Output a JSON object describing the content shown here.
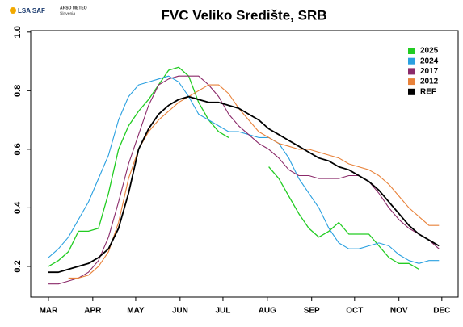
{
  "chart_data": {
    "type": "line",
    "title": "FVC Veliko Središte, SRB",
    "logo": {
      "name": "LSA SAF",
      "partner": "ARSO METEO",
      "partner_sub": "Slovenia"
    },
    "x": [
      0,
      7,
      14,
      21,
      28,
      35,
      42,
      49,
      56,
      63,
      70,
      77,
      84,
      91,
      98,
      105,
      112,
      119,
      126,
      133,
      140,
      147,
      154,
      161,
      168,
      175,
      182,
      189,
      196,
      203,
      210,
      217,
      224,
      231,
      238,
      245,
      252,
      259,
      266,
      273,
      280
    ],
    "xlim": [
      -12.4,
      286.4
    ],
    "xticks": [
      {
        "value": 0,
        "label": "MAR"
      },
      {
        "value": 31,
        "label": "APR"
      },
      {
        "value": 61,
        "label": "MAY"
      },
      {
        "value": 92,
        "label": "JUN"
      },
      {
        "value": 122,
        "label": "JUL"
      },
      {
        "value": 153,
        "label": "AUG"
      },
      {
        "value": 184,
        "label": "SEP"
      },
      {
        "value": 214,
        "label": "OCT"
      },
      {
        "value": 245,
        "label": "NOV"
      },
      {
        "value": 275,
        "label": "DEC"
      }
    ],
    "ylim": [
      0.095,
      1.005
    ],
    "yticks": [
      0.2,
      0.4,
      0.6,
      0.8,
      {
        "value": 1,
        "label": "1.0"
      }
    ],
    "grid": false,
    "legend": "top-right",
    "series": [
      {
        "name": "2025",
        "color": "#22cc22",
        "width": 1.3,
        "values": [
          0.2,
          0.22,
          0.25,
          0.32,
          0.32,
          0.33,
          0.45,
          0.6,
          0.68,
          0.73,
          0.77,
          0.82,
          0.87,
          0.88,
          0.85,
          0.76,
          0.7,
          0.66,
          0.64,
          null,
          null,
          null,
          0.54,
          0.5,
          0.44,
          0.38,
          0.33,
          0.3,
          0.32,
          0.35,
          0.31,
          0.31,
          0.31,
          0.27,
          0.23,
          0.21,
          0.21,
          0.19,
          null,
          null,
          null
        ]
      },
      {
        "name": "2024",
        "color": "#2aa0e0",
        "width": 1.1,
        "values": [
          0.23,
          0.26,
          0.3,
          0.36,
          0.42,
          0.5,
          0.58,
          0.7,
          0.78,
          0.82,
          0.83,
          0.84,
          0.85,
          0.83,
          0.78,
          0.72,
          0.7,
          0.68,
          0.66,
          0.66,
          0.65,
          0.64,
          0.64,
          0.62,
          0.57,
          0.5,
          0.45,
          0.4,
          0.33,
          0.28,
          0.26,
          0.26,
          0.27,
          0.28,
          0.27,
          0.24,
          0.22,
          0.21,
          0.22,
          0.22,
          null
        ]
      },
      {
        "name": "2017",
        "color": "#8b2a6a",
        "width": 1.1,
        "values": [
          0.14,
          0.14,
          0.15,
          0.16,
          0.18,
          0.22,
          0.3,
          0.42,
          0.55,
          0.65,
          0.75,
          0.82,
          0.84,
          0.85,
          0.85,
          0.85,
          0.82,
          0.78,
          0.72,
          0.68,
          0.65,
          0.62,
          0.6,
          0.57,
          0.53,
          0.51,
          0.51,
          0.5,
          0.5,
          0.5,
          0.51,
          0.51,
          0.49,
          0.45,
          0.4,
          0.36,
          0.33,
          0.31,
          0.29,
          0.26,
          null
        ]
      },
      {
        "name": "2012",
        "color": "#e8823a",
        "width": 1.1,
        "values": [
          null,
          null,
          0.16,
          0.16,
          0.17,
          0.2,
          0.25,
          0.35,
          0.5,
          0.6,
          0.66,
          0.7,
          0.73,
          0.76,
          0.78,
          0.8,
          0.82,
          0.82,
          0.79,
          0.74,
          0.7,
          0.66,
          0.64,
          0.62,
          0.61,
          0.6,
          0.6,
          0.59,
          0.58,
          0.57,
          0.55,
          0.54,
          0.53,
          0.51,
          0.48,
          0.44,
          0.4,
          0.37,
          0.34,
          0.34,
          null
        ]
      },
      {
        "name": "REF",
        "color": "#000000",
        "width": 1.8,
        "values": [
          0.18,
          0.18,
          0.19,
          0.2,
          0.21,
          0.23,
          0.26,
          0.33,
          0.45,
          0.6,
          0.67,
          0.72,
          0.75,
          0.77,
          0.78,
          0.77,
          0.76,
          0.76,
          0.75,
          0.74,
          0.72,
          0.7,
          0.67,
          0.65,
          0.63,
          0.61,
          0.59,
          0.57,
          0.56,
          0.54,
          0.53,
          0.51,
          0.49,
          0.46,
          0.42,
          0.38,
          0.34,
          0.31,
          0.29,
          0.27,
          null
        ]
      }
    ]
  }
}
